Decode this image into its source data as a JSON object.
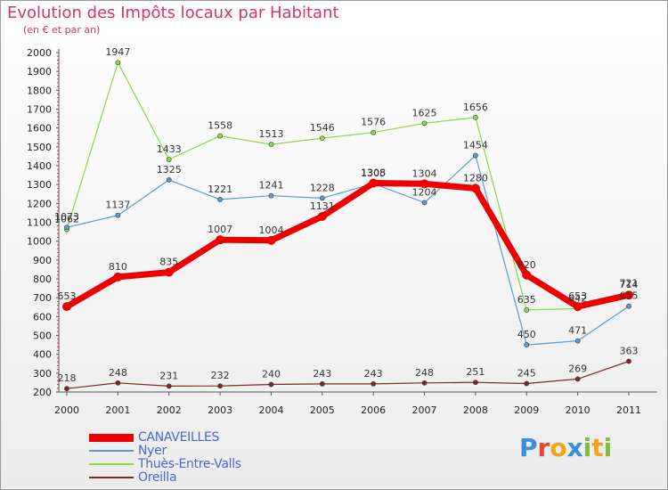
{
  "header": {
    "title": "Evolution des Impôts locaux par Habitant",
    "subtitle": "(en € et par an)"
  },
  "logo": {
    "text": "Proxiti",
    "colors": [
      "#3a8fd8",
      "#e8482f",
      "#f6a21a",
      "#3a8fd8",
      "#7bbf3a",
      "#f6a21a",
      "#7bbf3a"
    ]
  },
  "chart_data": {
    "type": "line",
    "title": "Evolution des Impôts locaux par Habitant",
    "subtitle": "(en € et par an)",
    "x": [
      "2000",
      "2001",
      "2002",
      "2003",
      "2004",
      "2005",
      "2006",
      "2007",
      "2008",
      "2009",
      "2010",
      "2011"
    ],
    "ylim": [
      200,
      2000
    ],
    "yticks": [
      "200",
      "300",
      "400",
      "500",
      "600",
      "700",
      "800",
      "900",
      "1000",
      "1100",
      "1200",
      "1300",
      "1400",
      "1500",
      "1600",
      "1700",
      "1800",
      "1900",
      "2000"
    ],
    "grid": false,
    "legend_position": "bottom-left",
    "series": [
      {
        "name": "CANAVEILLES",
        "color": "#ee0000",
        "values": [
          653,
          810,
          835,
          1007,
          1004,
          1131,
          1308,
          1304,
          1280,
          820,
          653,
          714
        ],
        "labels": [
          "653",
          "810",
          "835",
          "1007",
          "1004",
          "1131",
          "1308",
          "1304",
          "1280",
          "820",
          "653",
          "714"
        ]
      },
      {
        "name": "Nyer",
        "color": "#5d9ad2",
        "values": [
          1073,
          1137,
          1325,
          1221,
          1241,
          1228,
          1305,
          1204,
          1454,
          450,
          471,
          655
        ],
        "labels": [
          "1073",
          "1137",
          "1325",
          "1221",
          "1241",
          "1228",
          "1305",
          "1204",
          "1454",
          "450",
          "471",
          "655"
        ]
      },
      {
        "name": "Thuès-Entre-Valls",
        "color": "#8ed84a",
        "values": [
          1062,
          1947,
          1433,
          1558,
          1513,
          1546,
          1576,
          1625,
          1656,
          635,
          642,
          721
        ],
        "labels": [
          "1062",
          "1947",
          "1433",
          "1558",
          "1513",
          "1546",
          "1576",
          "1625",
          "1656",
          "635",
          "642",
          "721"
        ]
      },
      {
        "name": "Oreilla",
        "color": "#7a2a2a",
        "values": [
          218,
          248,
          231,
          232,
          240,
          243,
          243,
          248,
          251,
          245,
          269,
          363
        ],
        "labels": [
          "218",
          "248",
          "231",
          "232",
          "240",
          "243",
          "243",
          "248",
          "251",
          "245",
          "269",
          "363"
        ]
      }
    ]
  }
}
